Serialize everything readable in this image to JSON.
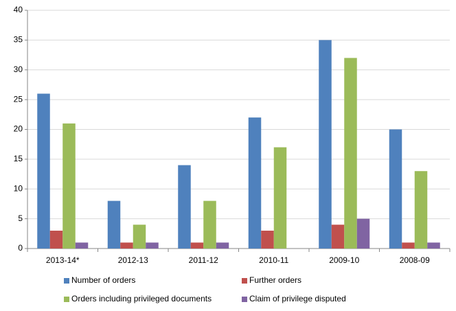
{
  "chart_data": {
    "type": "bar",
    "categories": [
      "2013-14*",
      "2012-13",
      "2011-12",
      "2010-11",
      "2009-10",
      "2008-09"
    ],
    "series": [
      {
        "name": "Number of orders",
        "color": "#4f81bd",
        "values": [
          26,
          8,
          14,
          22,
          35,
          20
        ]
      },
      {
        "name": "Further orders",
        "color": "#c0504d",
        "values": [
          3,
          1,
          1,
          3,
          4,
          1
        ]
      },
      {
        "name": "Orders including privileged documents",
        "color": "#9bbb59",
        "values": [
          21,
          4,
          8,
          17,
          32,
          13
        ]
      },
      {
        "name": "Claim of privilege disputed",
        "color": "#8064a2",
        "values": [
          1,
          1,
          1,
          0,
          5,
          1
        ]
      }
    ],
    "ylim": [
      0,
      40
    ],
    "yticks": [
      0,
      5,
      10,
      15,
      20,
      25,
      30,
      35,
      40
    ],
    "grid": true,
    "legend": "bottom"
  }
}
